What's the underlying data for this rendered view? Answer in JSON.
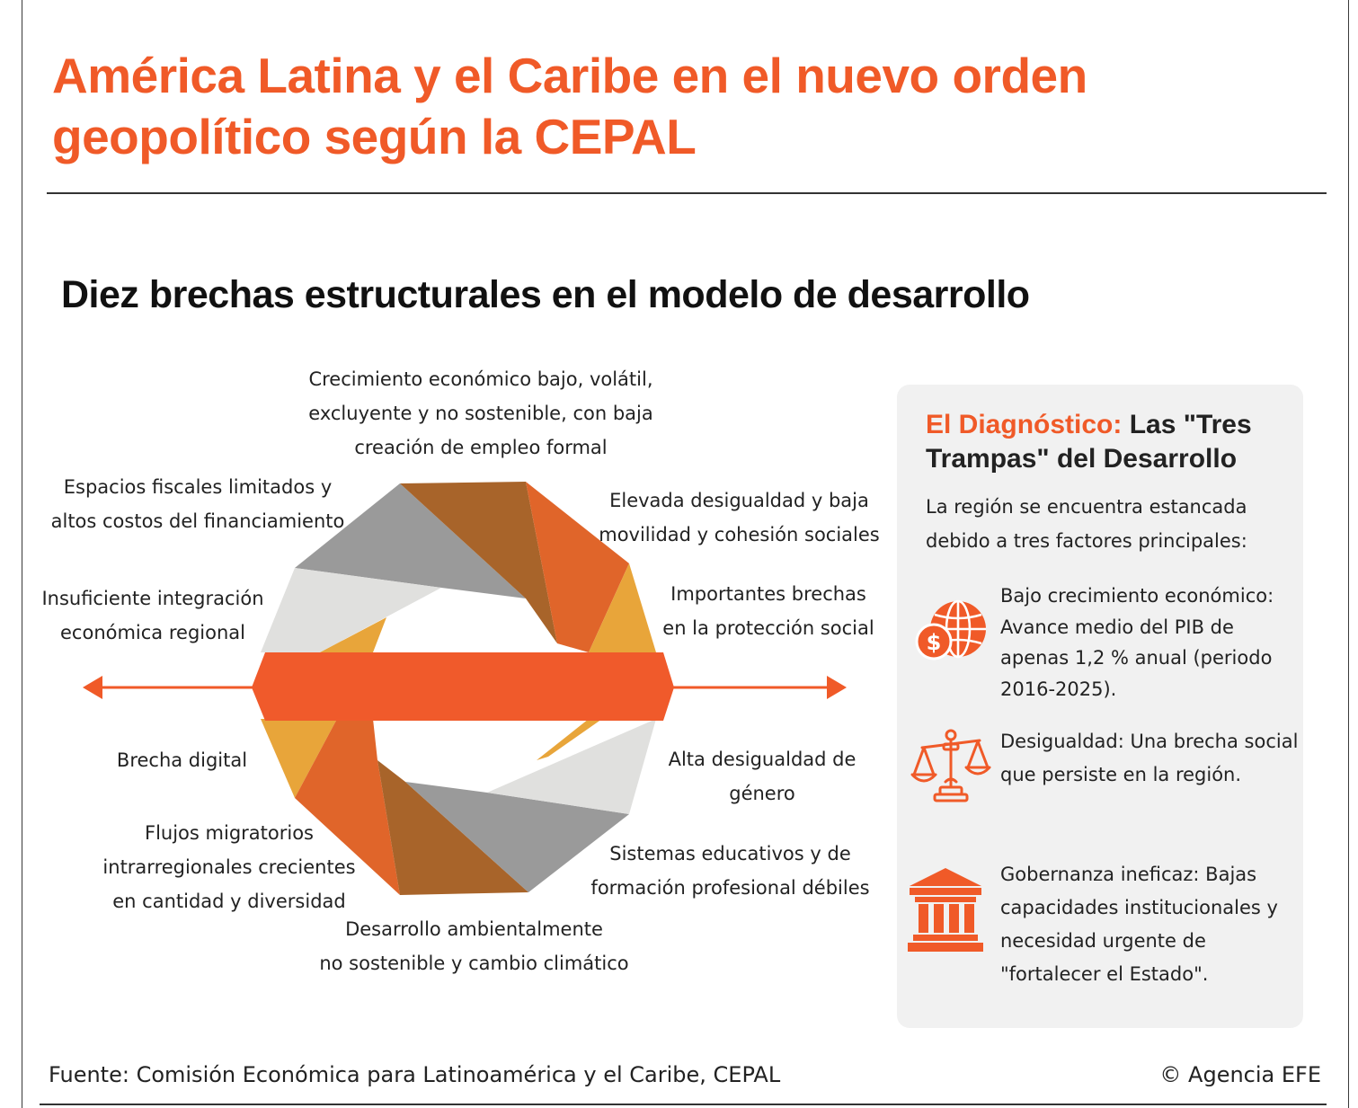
{
  "title": "América Latina y el Caribe en el nuevo orden geopolítico según la CEPAL",
  "subtitle": "Diez brechas estructurales en el modelo de desarrollo",
  "colors": {
    "accent": "#f05a28",
    "brown": "#a8642a",
    "orange": "#e0652a",
    "yellow": "#e8a53a",
    "light_gray": "#e0e0de",
    "gray": "#9a9a9a"
  },
  "gaps": [
    {
      "line1": "Crecimiento económico bajo, volátil,",
      "line2": "excluyente y no sostenible, con baja",
      "line3": "creación de empleo formal"
    },
    {
      "line1": "Elevada desigualdad y baja",
      "line2": "movilidad y cohesión sociales"
    },
    {
      "line1": "Importantes brechas",
      "line2": "en la protección social"
    },
    {
      "line1": "Alta desigualdad de",
      "line2": "género"
    },
    {
      "line1": "Sistemas educativos y de",
      "line2": "formación profesional débiles"
    },
    {
      "line1": "Desarrollo ambientalmente",
      "line2": "no sostenible y cambio climático"
    },
    {
      "line1": "Flujos migratorios",
      "line2": "intrarregionales crecientes",
      "line3": "en cantidad y diversidad"
    },
    {
      "line1": "Brecha digital"
    },
    {
      "line1": "Insuficiente integración",
      "line2": "económica regional"
    },
    {
      "line1": "Espacios fiscales limitados y",
      "line2": "altos costos del financiamiento"
    }
  ],
  "panel": {
    "title_highlight": "El Diagnóstico:",
    "title_rest": "Las \"Tres Trampas\" del Desarrollo",
    "intro": "La región se encuentra estancada debido a tres factores principales:",
    "factors": [
      {
        "icon": "globe-dollar-icon",
        "text": "Bajo crecimiento económico: Avance medio del PIB de apenas 1,2 % anual (periodo 2016-2025)."
      },
      {
        "icon": "scales-icon",
        "text": "Desigualdad: Una brecha social que persiste en la región."
      },
      {
        "icon": "government-building-icon",
        "text": "Gobernanza ineficaz: Bajas capacidades institucionales y necesidad urgente de \"fortalecer el Estado\"."
      }
    ]
  },
  "source": "Fuente: Comisión Económica para Latinoamérica y el Caribe, CEPAL",
  "credit": "© Agencia EFE"
}
